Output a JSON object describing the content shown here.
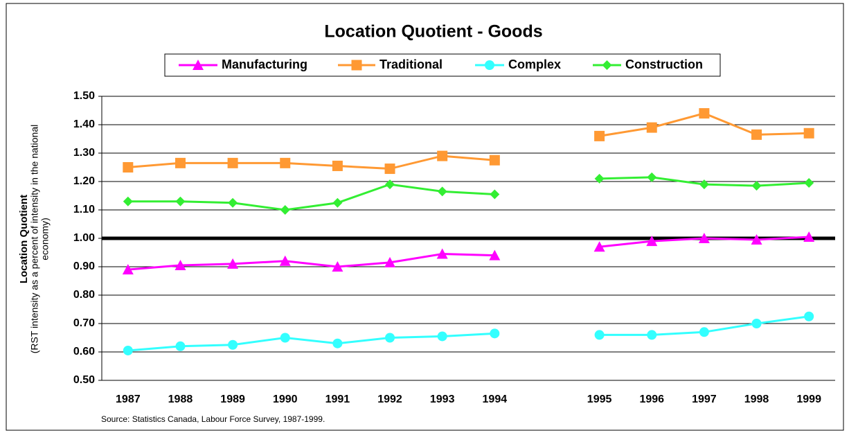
{
  "chart_data": {
    "type": "line",
    "title": "Location Quotient - Goods",
    "ylabel": "Location Quotient",
    "ylabel_note": [
      "(RST intensity as a percent of intensity in the national",
      "economy)"
    ],
    "source": "Source: Statistics Canada, Labour Force Survey, 1987-1999.",
    "categories": [
      "1987",
      "1988",
      "1989",
      "1990",
      "1991",
      "1992",
      "1993",
      "1994",
      null,
      "1995",
      "1996",
      "1997",
      "1998",
      "1999"
    ],
    "series": [
      {
        "name": "Manufacturing",
        "color": "#ff00ff",
        "marker": "triangle",
        "values": [
          0.89,
          0.905,
          0.91,
          0.92,
          0.9,
          0.915,
          0.945,
          0.94,
          null,
          0.97,
          0.99,
          1.0,
          0.995,
          1.005
        ]
      },
      {
        "name": "Traditional",
        "color": "#ff9933",
        "marker": "square",
        "values": [
          1.25,
          1.265,
          1.265,
          1.265,
          1.255,
          1.245,
          1.29,
          1.275,
          null,
          1.36,
          1.39,
          1.44,
          1.365,
          1.37
        ]
      },
      {
        "name": "Complex",
        "color": "#33ffff",
        "marker": "circle",
        "values": [
          0.605,
          0.62,
          0.625,
          0.65,
          0.63,
          0.65,
          0.655,
          0.665,
          null,
          0.66,
          0.66,
          0.67,
          0.7,
          0.725
        ]
      },
      {
        "name": "Construction",
        "color": "#33ee33",
        "marker": "diamond",
        "values": [
          1.13,
          1.13,
          1.125,
          1.1,
          1.125,
          1.19,
          1.165,
          1.155,
          null,
          1.21,
          1.215,
          1.19,
          1.185,
          1.195
        ]
      }
    ],
    "reference_line": 1.0,
    "ylim": [
      0.5,
      1.5
    ],
    "yticks": [
      {
        "value": 0.5,
        "label": "0.50"
      },
      {
        "value": 0.6,
        "label": "0.60"
      },
      {
        "value": 0.7,
        "label": "0.70"
      },
      {
        "value": 0.8,
        "label": "0.80"
      },
      {
        "value": 0.9,
        "label": "0.90"
      },
      {
        "value": 1.0,
        "label": "1.00"
      },
      {
        "value": 1.1,
        "label": "1.10"
      },
      {
        "value": 1.2,
        "label": "1.20"
      },
      {
        "value": 1.3,
        "label": "1.30"
      },
      {
        "value": 1.4,
        "label": "1.40"
      },
      {
        "value": 1.5,
        "label": "1.50"
      }
    ],
    "grid": true,
    "legend": "top"
  }
}
